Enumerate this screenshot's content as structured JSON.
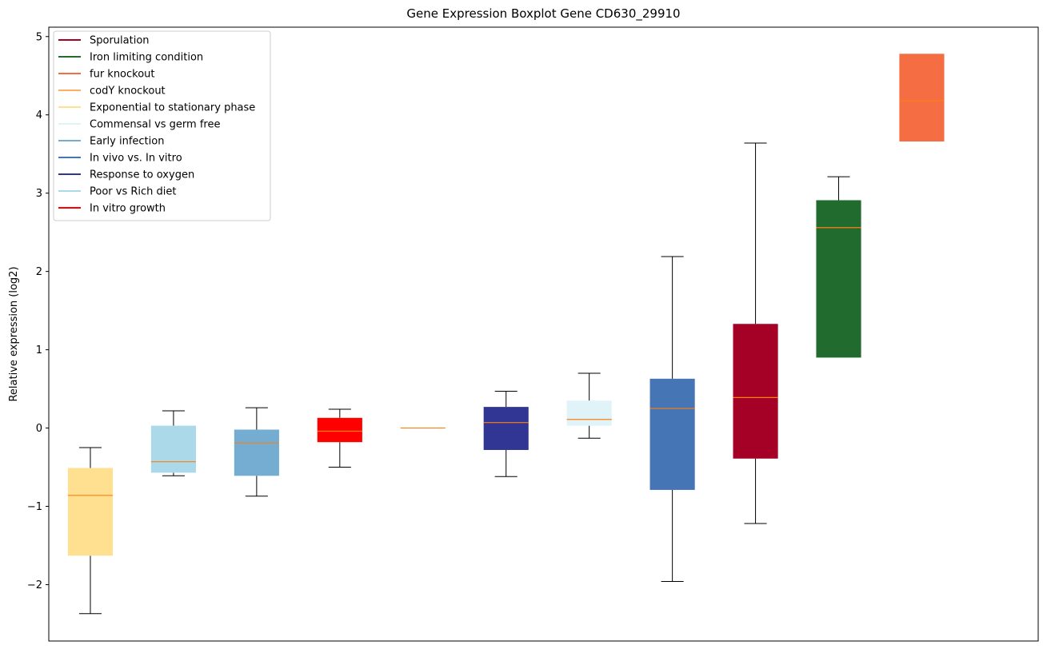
{
  "chart_data": {
    "type": "boxplot",
    "title": "Gene Expression Boxplot Gene CD630_29910",
    "xlabel": "",
    "ylabel": "Relative expression (log2)",
    "ylim": [
      -2.72,
      5.12
    ],
    "yticks": [
      -2,
      -1,
      0,
      1,
      2,
      3,
      4,
      5
    ],
    "ytick_labels": [
      "−2",
      "−1",
      "0",
      "1",
      "2",
      "3",
      "4",
      "5"
    ],
    "grid": false,
    "legend_location": "top-left",
    "legend": [
      {
        "label": "Sporulation",
        "color": "#a50026"
      },
      {
        "label": "Iron limiting condition",
        "color": "#226b2e"
      },
      {
        "label": "fur knockout",
        "color": "#f46d43"
      },
      {
        "label": "codY knockout",
        "color": "#fdae61"
      },
      {
        "label": "Exponential to stationary phase",
        "color": "#fee090"
      },
      {
        "label": "Commensal vs germ free",
        "color": "#e0f3f8"
      },
      {
        "label": "Early infection",
        "color": "#74add1"
      },
      {
        "label": "In vivo vs. In vitro",
        "color": "#4575b4"
      },
      {
        "label": "Response to oxygen",
        "color": "#313695"
      },
      {
        "label": "Poor vs Rich diet",
        "color": "#abd9e9"
      },
      {
        "label": "In vitro growth",
        "color": "#ff0000"
      }
    ],
    "boxes": [
      {
        "group": "Exponential to stationary phase",
        "color": "#fee090",
        "whislo": -2.37,
        "q1": -1.63,
        "med": -0.86,
        "q3": -0.51,
        "whishi": -0.25
      },
      {
        "group": "Poor vs Rich diet",
        "color": "#abd9e9",
        "whislo": -0.61,
        "q1": -0.57,
        "med": -0.43,
        "q3": 0.03,
        "whishi": 0.22
      },
      {
        "group": "Early infection",
        "color": "#74add1",
        "whislo": -0.87,
        "q1": -0.61,
        "med": -0.19,
        "q3": -0.02,
        "whishi": 0.26
      },
      {
        "group": "In vitro growth",
        "color": "#ff0000",
        "whislo": -0.5,
        "q1": -0.18,
        "med": -0.04,
        "q3": 0.13,
        "whishi": 0.24
      },
      {
        "group": "codY knockout",
        "color": "#fdae61",
        "whislo": 0.0,
        "q1": 0.0,
        "med": 0.0,
        "q3": 0.0,
        "whishi": 0.0
      },
      {
        "group": "Response to oxygen",
        "color": "#313695",
        "whislo": -0.62,
        "q1": -0.28,
        "med": 0.07,
        "q3": 0.27,
        "whishi": 0.47
      },
      {
        "group": "Commensal vs germ free",
        "color": "#e0f3f8",
        "whislo": -0.13,
        "q1": 0.03,
        "med": 0.11,
        "q3": 0.35,
        "whishi": 0.7
      },
      {
        "group": "In vivo vs. In vitro",
        "color": "#4575b4",
        "whislo": -1.96,
        "q1": -0.79,
        "med": 0.25,
        "q3": 0.63,
        "whishi": 2.19
      },
      {
        "group": "Sporulation",
        "color": "#a50026",
        "whislo": -1.22,
        "q1": -0.39,
        "med": 0.39,
        "q3": 1.33,
        "whishi": 3.64
      },
      {
        "group": "Iron limiting condition",
        "color": "#226b2e",
        "whislo": 0.9,
        "q1": 0.9,
        "med": 2.56,
        "q3": 2.91,
        "whishi": 3.21
      },
      {
        "group": "fur knockout",
        "color": "#f46d43",
        "whislo": 3.66,
        "q1": 3.66,
        "med": 4.18,
        "q3": 4.78,
        "whishi": 4.78
      }
    ],
    "median_color": "#ff7f0e",
    "whisker_color": "#000000"
  }
}
